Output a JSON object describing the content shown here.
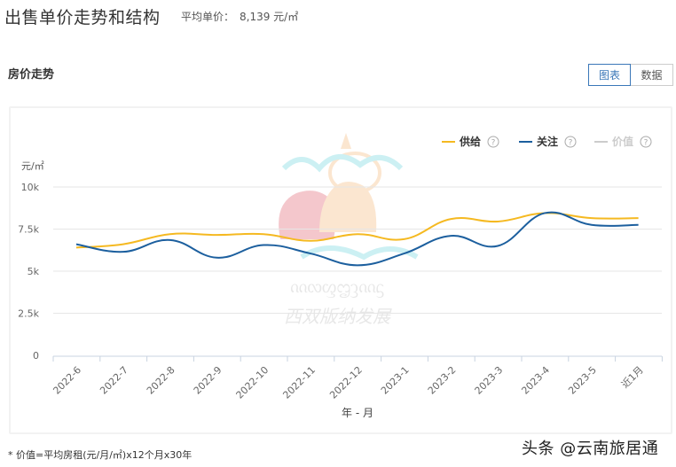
{
  "header": {
    "title": "出售单价走势和结构",
    "avg_price_label": "平均单价：",
    "avg_price_value": "8,139 元/㎡"
  },
  "section": {
    "title": "房价走势"
  },
  "view_toggle": {
    "chart_label": "图表",
    "data_label": "数据",
    "active": "chart"
  },
  "legend": [
    {
      "name": "供给",
      "color": "#f5b921",
      "help_icon": "question-circle-icon",
      "active": true
    },
    {
      "name": "关注",
      "color": "#1c5f9e",
      "help_icon": "question-circle-icon",
      "active": true
    },
    {
      "name": "价值",
      "color": "#cccccc",
      "help_icon": "question-circle-icon",
      "active": false
    }
  ],
  "footnote": "* 价值=平均房租(元/月/㎡)x12个月x30年",
  "watermark_credit": "头条 @云南旅居通",
  "chart_data": {
    "type": "line",
    "title": "房价走势",
    "xlabel": "年 - 月",
    "ylabel": "元/㎡",
    "ylim": [
      0,
      10000
    ],
    "yticks": [
      "0",
      "2.5k",
      "5k",
      "7.5k",
      "10k"
    ],
    "ytick_values": [
      0,
      2500,
      5000,
      7500,
      10000
    ],
    "grid": true,
    "legend_position": "top-right",
    "categories": [
      "2022-6",
      "2022-7",
      "2022-8",
      "2022-9",
      "2022-10",
      "2022-11",
      "2022-12",
      "2023-1",
      "2023-2",
      "2023-3",
      "2023-4",
      "2023-5",
      "近1月"
    ],
    "series": [
      {
        "name": "供给",
        "color": "#f5b921",
        "values": [
          6400,
          6600,
          7200,
          7150,
          7200,
          6800,
          7200,
          6900,
          8100,
          7950,
          8450,
          8150,
          8150
        ]
      },
      {
        "name": "关注",
        "color": "#1c5f9e",
        "values": [
          6600,
          6150,
          6850,
          5800,
          6550,
          6050,
          5350,
          6050,
          7100,
          6500,
          8450,
          7750,
          7750
        ]
      },
      {
        "name": "价值",
        "color": "#cccccc",
        "values": [],
        "hidden": true
      }
    ]
  }
}
